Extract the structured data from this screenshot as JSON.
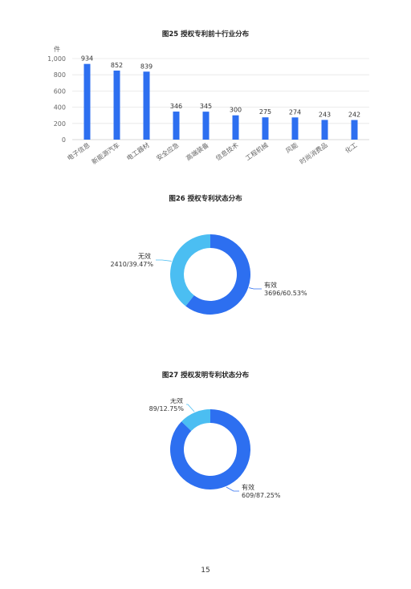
{
  "page_number": "15",
  "colors": {
    "primary": "#2d6ff0",
    "secondary": "#4bbef2",
    "axis_text": "#666666",
    "grid": "#e6e6e6"
  },
  "chart_data": [
    {
      "type": "bar",
      "title": "图25 授权专利前十行业分布",
      "ylabel": "件",
      "categories": [
        "电子信息",
        "新能源汽车",
        "电工器材",
        "安全应急",
        "高端装备",
        "信息技术",
        "工程机械",
        "风能",
        "时尚消费品",
        "化工"
      ],
      "values": [
        934,
        852,
        839,
        346,
        345,
        300,
        275,
        274,
        243,
        242
      ],
      "data_labels": [
        "934",
        "852",
        "839",
        "346",
        "345",
        "300",
        "275",
        "274",
        "243",
        "242"
      ],
      "ylim": [
        0,
        1000
      ],
      "yticks": [
        "0",
        "200",
        "400",
        "600",
        "800",
        "1,000"
      ],
      "grid": true
    },
    {
      "type": "pie",
      "title": "图26 授权专利状态分布",
      "slices": [
        {
          "name": "有效",
          "value": 3696,
          "label": "3696/60.53%"
        },
        {
          "name": "无效",
          "value": 2410,
          "label": "2410/39.47%"
        }
      ]
    },
    {
      "type": "pie",
      "title": "图27 授权发明专利状态分布",
      "slices": [
        {
          "name": "有效",
          "value": 609,
          "label": "609/87.25%"
        },
        {
          "name": "无效",
          "value": 89,
          "label": "89/12.75%"
        }
      ]
    }
  ]
}
